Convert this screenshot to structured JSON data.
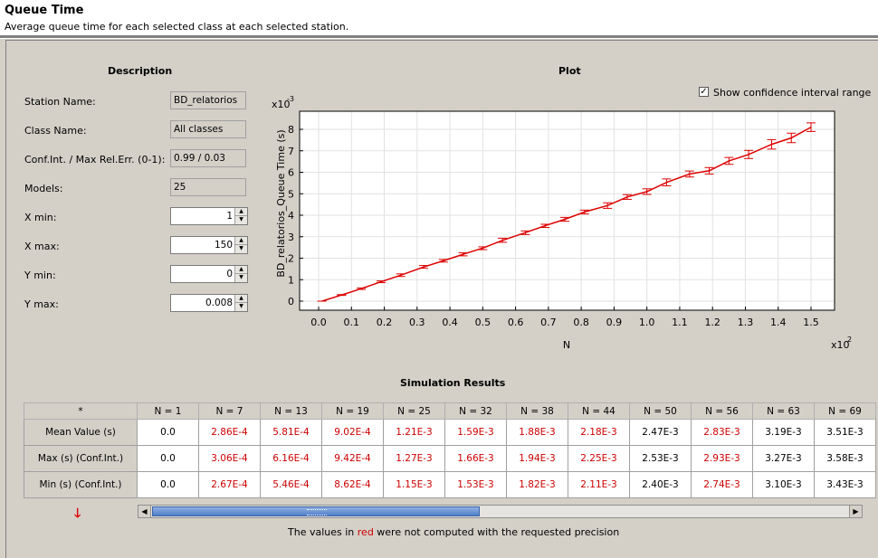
{
  "header": {
    "title": "Queue Time",
    "subtitle": "Average queue time for each selected class at each selected station."
  },
  "description": {
    "heading": "Description",
    "station_label": "Station Name:",
    "station_value": "BD_relatorios",
    "class_label": "Class Name:",
    "class_value": "All classes",
    "conf_label": "Conf.Int. / Max Rel.Err. (0-1):",
    "conf_value": "0.99 / 0.03",
    "models_label": "Models:",
    "models_value": "25",
    "xmin_label": "X min:",
    "xmin_value": "1",
    "xmax_label": "X max:",
    "xmax_value": "150",
    "ymin_label": "Y min:",
    "ymin_value": "0",
    "ymax_label": "Y max:",
    "ymax_value": "0.008"
  },
  "plot": {
    "heading": "Plot",
    "show_ci_label": "Show confidence interval range",
    "show_ci_checked": true
  },
  "chart_data": {
    "type": "line",
    "x_label": "N",
    "y_label": "BD_relatorios_Queue Time (s)",
    "x_multiplier": "x10",
    "x_multiplier_exp": "2",
    "y_multiplier": "x10",
    "y_multiplier_exp": "-3",
    "x_ticks": [
      "0.0",
      "0.1",
      "0.2",
      "0.3",
      "0.4",
      "0.5",
      "0.6",
      "0.7",
      "0.8",
      "0.9",
      "1.0",
      "1.1",
      "1.2",
      "1.3",
      "1.4",
      "1.5"
    ],
    "y_ticks": [
      "0",
      "1",
      "2",
      "3",
      "4",
      "5",
      "6",
      "7",
      "8"
    ],
    "xlim": [
      0,
      150
    ],
    "ylim": [
      0,
      0.008
    ],
    "line_color": "#dd0000",
    "x": [
      1,
      7,
      13,
      19,
      25,
      32,
      38,
      44,
      50,
      56,
      63,
      69,
      75,
      81,
      88,
      94,
      100,
      106,
      113,
      119,
      125,
      131,
      138,
      144,
      150
    ],
    "y": [
      0.0,
      0.000286,
      0.000581,
      0.000902,
      0.00121,
      0.00159,
      0.00188,
      0.00218,
      0.00247,
      0.00283,
      0.00319,
      0.00351,
      0.00381,
      0.00415,
      0.00445,
      0.00485,
      0.0051,
      0.00553,
      0.00592,
      0.00607,
      0.00653,
      0.00683,
      0.0073,
      0.0076,
      0.0081
    ],
    "y_min": [
      0.0,
      0.000267,
      0.000546,
      0.000862,
      0.00115,
      0.00153,
      0.00182,
      0.00211,
      0.0024,
      0.00274,
      0.0031,
      0.00343,
      0.00372,
      0.00406,
      0.00432,
      0.00474,
      0.00497,
      0.00537,
      0.00578,
      0.00592,
      0.00637,
      0.00664,
      0.00708,
      0.00738,
      0.0079
    ],
    "y_max": [
      0.0,
      0.000306,
      0.000616,
      0.000942,
      0.00127,
      0.00166,
      0.00194,
      0.00225,
      0.00253,
      0.00293,
      0.00327,
      0.00358,
      0.0039,
      0.00424,
      0.00458,
      0.00496,
      0.00523,
      0.00569,
      0.00606,
      0.00622,
      0.00669,
      0.00702,
      0.00752,
      0.00782,
      0.0083
    ]
  },
  "results": {
    "heading": "Simulation Results",
    "corner": "*",
    "columns": [
      "N = 1",
      "N = 7",
      "N = 13",
      "N = 19",
      "N = 25",
      "N = 32",
      "N = 38",
      "N = 44",
      "N = 50",
      "N = 56",
      "N = 63",
      "N = 69"
    ],
    "rows": [
      {
        "label": "Mean Value (s)",
        "values": [
          "0.0",
          "2.86E-4",
          "5.81E-4",
          "9.02E-4",
          "1.21E-3",
          "1.59E-3",
          "1.88E-3",
          "2.18E-3",
          "2.47E-3",
          "2.83E-3",
          "3.19E-3",
          "3.51E-3"
        ]
      },
      {
        "label": "Max (s) (Conf.Int.)",
        "values": [
          "0.0",
          "3.06E-4",
          "6.16E-4",
          "9.42E-4",
          "1.27E-3",
          "1.66E-3",
          "1.94E-3",
          "2.25E-3",
          "2.53E-3",
          "2.93E-3",
          "3.27E-3",
          "3.58E-3"
        ]
      },
      {
        "label": "Min (s) (Conf.Int.)",
        "values": [
          "0.0",
          "2.67E-4",
          "5.46E-4",
          "8.62E-4",
          "1.15E-3",
          "1.53E-3",
          "1.82E-3",
          "2.11E-3",
          "2.40E-3",
          "2.74E-3",
          "3.10E-3",
          "3.43E-3"
        ]
      }
    ],
    "red_columns": [
      false,
      true,
      true,
      true,
      true,
      true,
      true,
      true,
      false,
      true,
      false,
      false
    ],
    "note_pre": "The values in ",
    "note_red": "red",
    "note_post": " were not computed with the requested precision",
    "note_red_color": "#cc0000"
  }
}
